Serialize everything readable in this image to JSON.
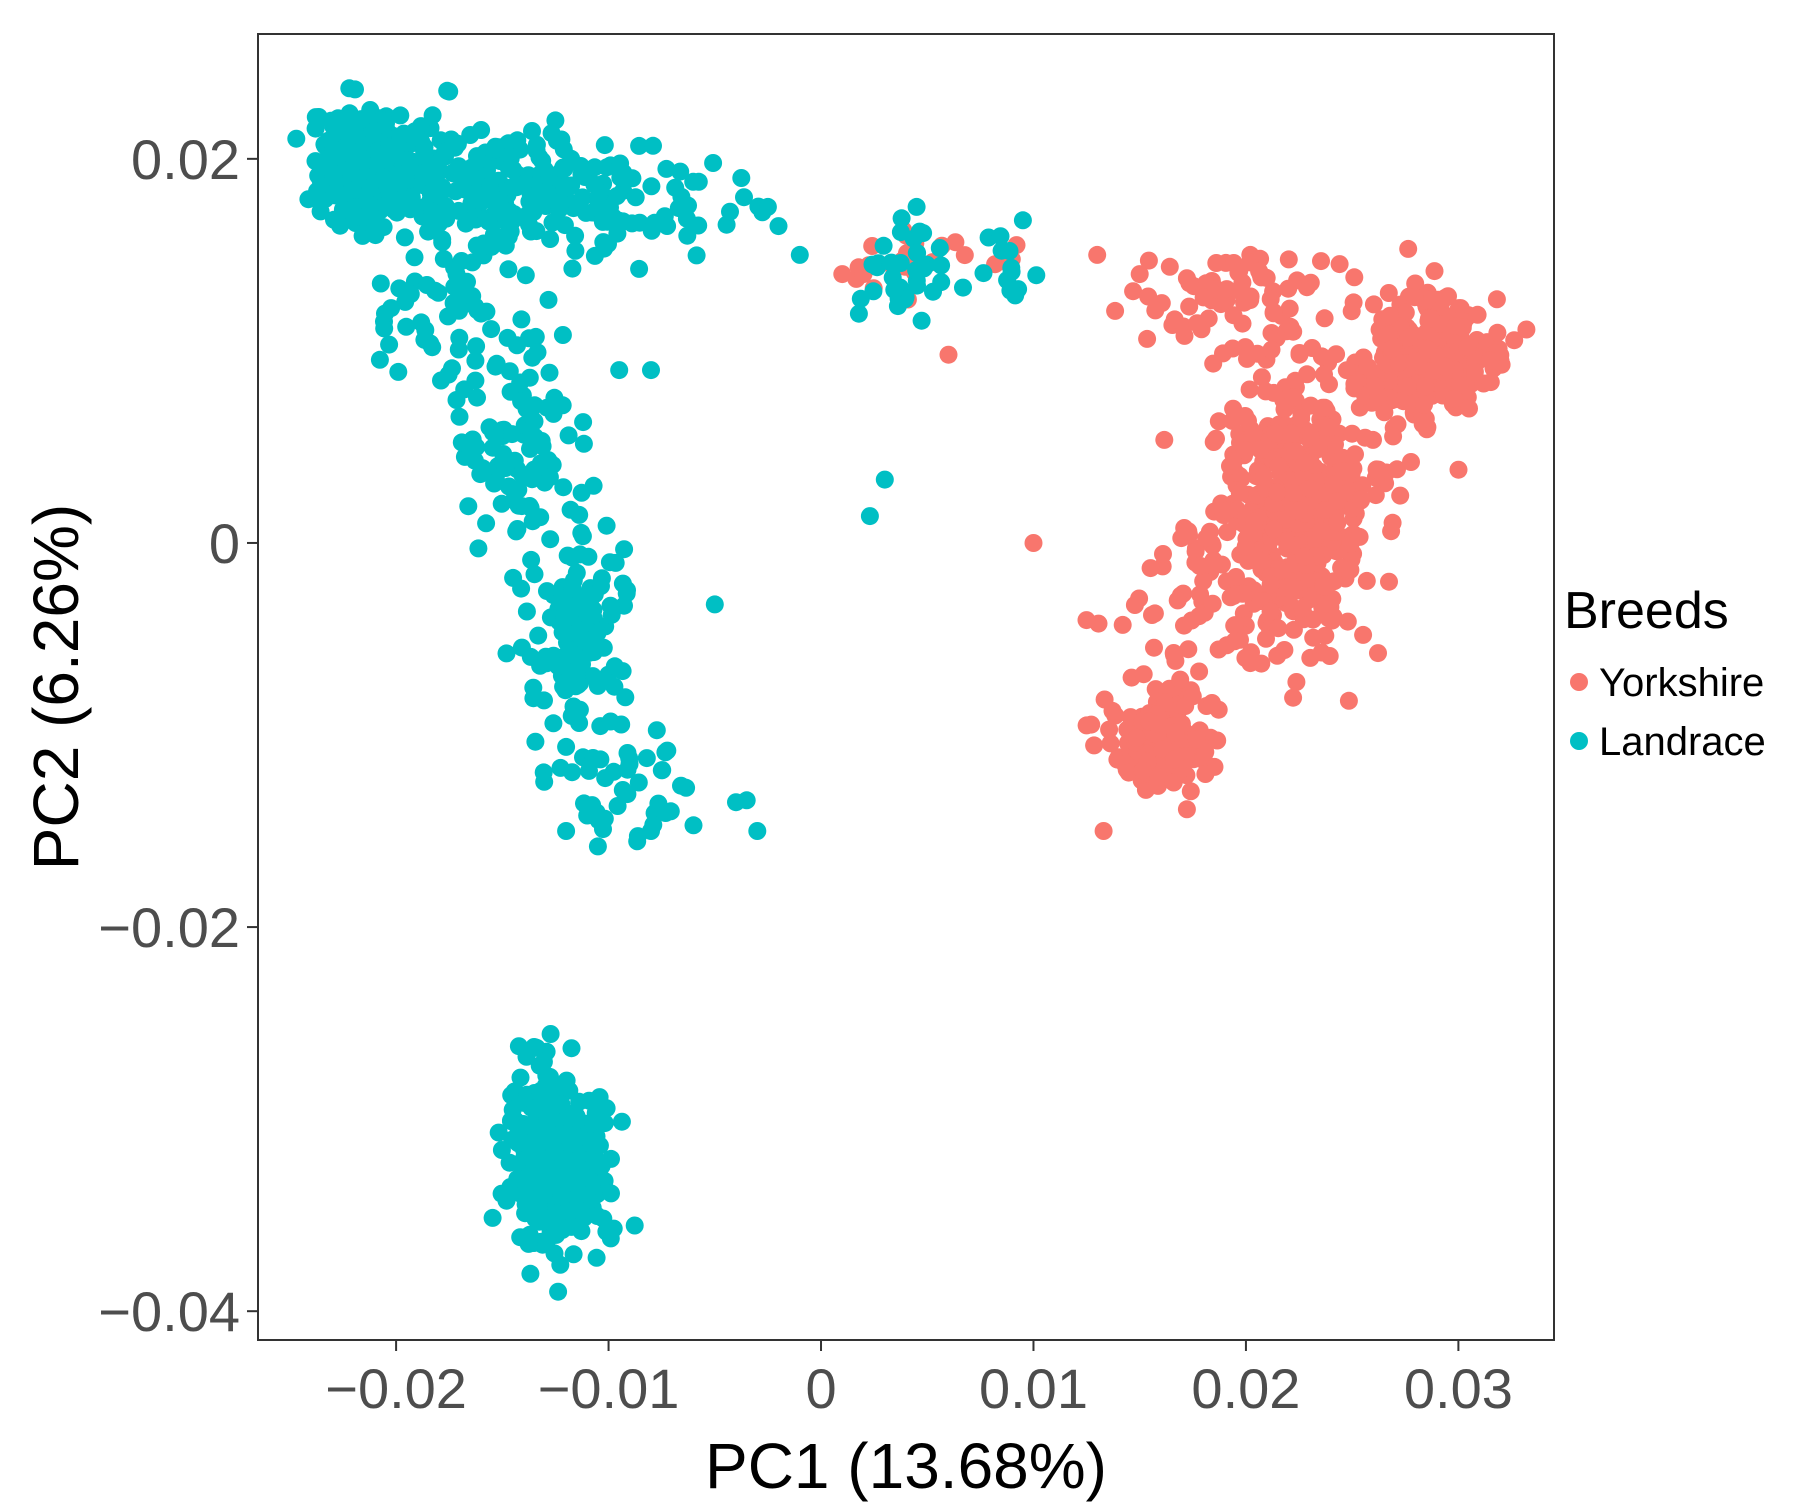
{
  "chart_data": {
    "type": "scatter",
    "title": "",
    "xlabel": "PC1 (13.68%)",
    "ylabel": "PC2 (6.26%)",
    "xlim": [
      -0.0265,
      0.0345
    ],
    "ylim": [
      -0.0415,
      0.0265
    ],
    "xticks": [
      -0.02,
      -0.01,
      0,
      0.01,
      0.02,
      0.03
    ],
    "xtick_labels": [
      "−0.02",
      "−0.01",
      "0",
      "0.01",
      "0.02",
      "0.03"
    ],
    "yticks": [
      -0.04,
      -0.02,
      0,
      0.02
    ],
    "ytick_labels": [
      "−0.04",
      "−0.02",
      "0",
      "0.02"
    ],
    "grid": false,
    "legend": {
      "title": "Breeds",
      "position": "right"
    },
    "series": [
      {
        "name": "Yorkshire",
        "color": "#f8766d",
        "clusters": [
          {
            "cx": 0.0285,
            "cy": 0.0095,
            "sx": 0.0016,
            "sy": 0.0016,
            "n": 320
          },
          {
            "cx": 0.022,
            "cy": 0.001,
            "sx": 0.0018,
            "sy": 0.0035,
            "n": 480
          },
          {
            "cx": 0.016,
            "cy": -0.0105,
            "sx": 0.0011,
            "sy": 0.0013,
            "n": 160
          },
          {
            "cx": 0.02,
            "cy": 0.013,
            "sx": 0.003,
            "sy": 0.0012,
            "n": 70
          },
          {
            "cx": 0.024,
            "cy": 0.006,
            "sx": 0.002,
            "sy": 0.002,
            "n": 60
          },
          {
            "cx": 0.0175,
            "cy": -0.003,
            "sx": 0.002,
            "sy": 0.0025,
            "n": 45
          },
          {
            "cx": 0.004,
            "cy": 0.0145,
            "sx": 0.0013,
            "sy": 0.0008,
            "n": 22
          },
          {
            "cx": 0.009,
            "cy": 0.015,
            "sx": 0.0005,
            "sy": 0.0004,
            "n": 5
          }
        ],
        "points": [
          [
            0.01,
            0.0
          ],
          [
            0.006,
            0.0098
          ],
          [
            0.0133,
            -0.015
          ],
          [
            0.0125,
            -0.0095
          ],
          [
            0.002,
            0.014
          ],
          [
            0.013,
            0.015
          ],
          [
            0.015,
            0.014
          ],
          [
            0.0315,
            0.0095
          ],
          [
            0.0305,
            0.007
          ],
          [
            0.001,
            0.014
          ]
        ]
      },
      {
        "name": "Landrace",
        "color": "#00bfc4",
        "clusters": [
          {
            "cx": -0.021,
            "cy": 0.0195,
            "sx": 0.0013,
            "sy": 0.0014,
            "n": 380
          },
          {
            "cx": -0.015,
            "cy": 0.0185,
            "sx": 0.003,
            "sy": 0.0014,
            "n": 180
          },
          {
            "cx": -0.009,
            "cy": 0.0175,
            "sx": 0.003,
            "sy": 0.0013,
            "n": 70
          },
          {
            "cx": -0.017,
            "cy": 0.012,
            "sx": 0.002,
            "sy": 0.0025,
            "n": 70
          },
          {
            "cx": -0.014,
            "cy": 0.004,
            "sx": 0.0015,
            "sy": 0.0025,
            "n": 80
          },
          {
            "cx": -0.0115,
            "cy": -0.0045,
            "sx": 0.0012,
            "sy": 0.003,
            "n": 130
          },
          {
            "cx": -0.0095,
            "cy": -0.012,
            "sx": 0.0018,
            "sy": 0.0015,
            "n": 40
          },
          {
            "cx": -0.0125,
            "cy": -0.032,
            "sx": 0.0011,
            "sy": 0.0022,
            "n": 420
          },
          {
            "cx": 0.004,
            "cy": 0.014,
            "sx": 0.001,
            "sy": 0.0011,
            "n": 35
          },
          {
            "cx": 0.0085,
            "cy": 0.0145,
            "sx": 0.0007,
            "sy": 0.0008,
            "n": 12
          }
        ],
        "points": [
          [
            0.003,
            0.0033
          ],
          [
            0.0023,
            0.0014
          ],
          [
            -0.0095,
            0.009
          ],
          [
            -0.008,
            0.009
          ],
          [
            -0.005,
            -0.0032
          ],
          [
            -0.004,
            -0.0135
          ],
          [
            -0.003,
            -0.015
          ],
          [
            -0.012,
            -0.015
          ],
          [
            -0.0105,
            -0.0158
          ],
          [
            -0.008,
            -0.015
          ],
          [
            -0.006,
            -0.0147
          ],
          [
            -0.0035,
            -0.0134
          ],
          [
            -0.002,
            0.0165
          ],
          [
            -0.0025,
            0.0175
          ],
          [
            -0.001,
            0.015
          ],
          [
            0.0045,
            0.0175
          ],
          [
            0.0095,
            0.0168
          ],
          [
            -0.016,
            0.0215
          ],
          [
            -0.0175,
            0.0235
          ],
          [
            -0.0125,
            0.022
          ]
        ]
      }
    ]
  }
}
